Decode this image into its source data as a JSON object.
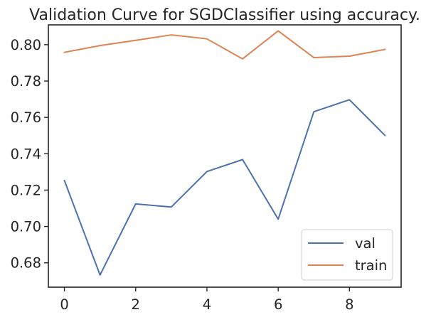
{
  "chart_data": {
    "type": "line",
    "title": "Validation Curve for SGDClassifier using accuracy.",
    "xlabel": "",
    "ylabel": "",
    "x": [
      0,
      1,
      2,
      3,
      4,
      5,
      6,
      7,
      8,
      9
    ],
    "series": [
      {
        "name": "val",
        "color": "#4c72b0",
        "values": [
          0.7253,
          0.6733,
          0.7124,
          0.7107,
          0.7302,
          0.7368,
          0.704,
          0.7631,
          0.7697,
          0.75
        ]
      },
      {
        "name": "train",
        "color": "#dd8452",
        "values": [
          0.7958,
          0.7995,
          0.8024,
          0.8054,
          0.8032,
          0.7922,
          0.8076,
          0.7929,
          0.7937,
          0.7974
        ]
      }
    ],
    "xlim": [
      -0.45,
      9.45
    ],
    "ylim": [
      0.6666,
      0.8109
    ],
    "xticks": [
      0,
      2,
      4,
      6,
      8
    ],
    "xtick_labels": [
      "0",
      "2",
      "4",
      "6",
      "8"
    ],
    "yticks": [
      0.68,
      0.7,
      0.72,
      0.74,
      0.76,
      0.78,
      0.8
    ],
    "ytick_labels": [
      "0.68",
      "0.70",
      "0.72",
      "0.74",
      "0.76",
      "0.78",
      "0.80"
    ],
    "grid": false,
    "legend_position": "lower-right"
  }
}
